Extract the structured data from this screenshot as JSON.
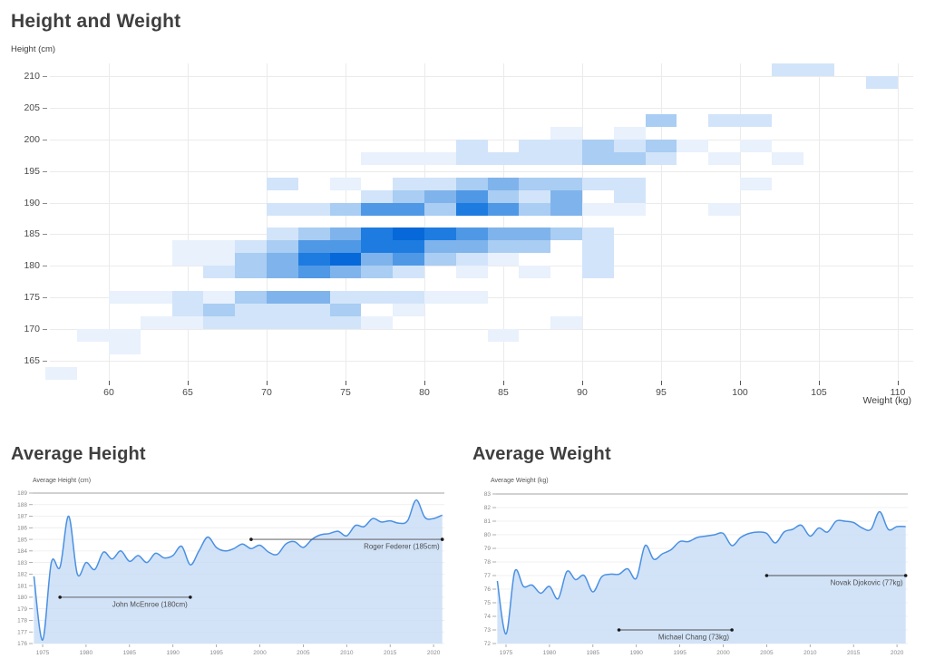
{
  "heatmap_section": {
    "title": "Height and Weight",
    "y_axis_label": "Height (cm)",
    "x_axis_label": "Weight (kg)"
  },
  "height_section": {
    "title": "Average Height",
    "y_axis_label": "Average Height (cm)"
  },
  "weight_section": {
    "title": "Average Weight",
    "y_axis_label": "Average Weight (kg)"
  },
  "chart_data": [
    {
      "type": "heatmap",
      "title": "Height and Weight",
      "xlabel": "Weight (kg)",
      "ylabel": "Height (cm)",
      "x_ticks": [
        60,
        65,
        70,
        75,
        80,
        85,
        90,
        95,
        100,
        105,
        110
      ],
      "y_ticks": [
        165,
        170,
        175,
        180,
        185,
        190,
        195,
        200,
        205,
        210
      ],
      "xlim": [
        56,
        112
      ],
      "ylim": [
        162,
        212
      ],
      "bin_width_kg": 2,
      "bin_height_cm": 2,
      "grid": true,
      "palette": {
        "1": "#e8f1fc",
        "2": "#d2e4f9",
        "3": "#a9cdf3",
        "4": "#7fb3eb",
        "5": "#4f98e6",
        "6": "#1e7ce1",
        "7": "#0668d9"
      },
      "cells": [
        [
          102,
          210,
          2
        ],
        [
          104,
          210,
          2
        ],
        [
          108,
          208,
          2
        ],
        [
          94,
          202,
          3
        ],
        [
          98,
          202,
          2
        ],
        [
          100,
          202,
          2
        ],
        [
          88,
          200,
          1
        ],
        [
          92,
          200,
          1
        ],
        [
          82,
          198,
          2
        ],
        [
          86,
          198,
          2
        ],
        [
          88,
          198,
          2
        ],
        [
          90,
          198,
          3
        ],
        [
          92,
          198,
          2
        ],
        [
          94,
          198,
          3
        ],
        [
          96,
          198,
          1
        ],
        [
          100,
          198,
          1
        ],
        [
          76,
          196,
          1
        ],
        [
          78,
          196,
          1
        ],
        [
          80,
          196,
          1
        ],
        [
          82,
          196,
          2
        ],
        [
          84,
          196,
          2
        ],
        [
          86,
          196,
          2
        ],
        [
          88,
          196,
          2
        ],
        [
          90,
          196,
          3
        ],
        [
          92,
          196,
          3
        ],
        [
          94,
          196,
          2
        ],
        [
          98,
          196,
          1
        ],
        [
          102,
          196,
          1
        ],
        [
          70,
          192,
          2
        ],
        [
          74,
          192,
          1
        ],
        [
          78,
          192,
          2
        ],
        [
          80,
          192,
          2
        ],
        [
          82,
          192,
          3
        ],
        [
          84,
          192,
          4
        ],
        [
          86,
          192,
          3
        ],
        [
          88,
          192,
          3
        ],
        [
          90,
          192,
          2
        ],
        [
          92,
          192,
          2
        ],
        [
          100,
          192,
          1
        ],
        [
          76,
          190,
          2
        ],
        [
          78,
          190,
          3
        ],
        [
          80,
          190,
          4
        ],
        [
          82,
          190,
          5
        ],
        [
          84,
          190,
          3
        ],
        [
          86,
          190,
          2
        ],
        [
          88,
          190,
          4
        ],
        [
          92,
          190,
          2
        ],
        [
          70,
          188,
          2
        ],
        [
          72,
          188,
          2
        ],
        [
          74,
          188,
          3
        ],
        [
          76,
          188,
          5
        ],
        [
          78,
          188,
          5
        ],
        [
          80,
          188,
          3
        ],
        [
          82,
          188,
          6
        ],
        [
          84,
          188,
          5
        ],
        [
          86,
          188,
          3
        ],
        [
          88,
          188,
          4
        ],
        [
          90,
          188,
          1
        ],
        [
          92,
          188,
          1
        ],
        [
          98,
          188,
          1
        ],
        [
          70,
          184,
          2
        ],
        [
          72,
          184,
          3
        ],
        [
          74,
          184,
          4
        ],
        [
          76,
          184,
          6
        ],
        [
          78,
          184,
          7
        ],
        [
          80,
          184,
          6
        ],
        [
          82,
          184,
          5
        ],
        [
          84,
          184,
          4
        ],
        [
          86,
          184,
          4
        ],
        [
          88,
          184,
          3
        ],
        [
          90,
          184,
          2
        ],
        [
          64,
          182,
          1
        ],
        [
          66,
          182,
          1
        ],
        [
          68,
          182,
          2
        ],
        [
          70,
          182,
          3
        ],
        [
          72,
          182,
          5
        ],
        [
          74,
          182,
          5
        ],
        [
          76,
          182,
          6
        ],
        [
          78,
          182,
          6
        ],
        [
          80,
          182,
          4
        ],
        [
          82,
          182,
          4
        ],
        [
          84,
          182,
          3
        ],
        [
          86,
          182,
          3
        ],
        [
          90,
          182,
          2
        ],
        [
          64,
          180,
          1
        ],
        [
          66,
          180,
          1
        ],
        [
          68,
          180,
          3
        ],
        [
          70,
          180,
          4
        ],
        [
          72,
          180,
          6
        ],
        [
          74,
          180,
          7
        ],
        [
          76,
          180,
          4
        ],
        [
          78,
          180,
          5
        ],
        [
          80,
          180,
          3
        ],
        [
          82,
          180,
          2
        ],
        [
          84,
          180,
          1
        ],
        [
          90,
          180,
          2
        ],
        [
          66,
          178,
          2
        ],
        [
          68,
          178,
          3
        ],
        [
          70,
          178,
          4
        ],
        [
          72,
          178,
          5
        ],
        [
          74,
          178,
          4
        ],
        [
          76,
          178,
          3
        ],
        [
          78,
          178,
          2
        ],
        [
          82,
          178,
          1
        ],
        [
          86,
          178,
          1
        ],
        [
          90,
          178,
          2
        ],
        [
          60,
          174,
          1
        ],
        [
          62,
          174,
          1
        ],
        [
          64,
          174,
          2
        ],
        [
          66,
          174,
          1
        ],
        [
          68,
          174,
          3
        ],
        [
          70,
          174,
          4
        ],
        [
          72,
          174,
          4
        ],
        [
          74,
          174,
          2
        ],
        [
          76,
          174,
          2
        ],
        [
          78,
          174,
          2
        ],
        [
          80,
          174,
          1
        ],
        [
          82,
          174,
          1
        ],
        [
          64,
          172,
          2
        ],
        [
          66,
          172,
          3
        ],
        [
          68,
          172,
          2
        ],
        [
          70,
          172,
          2
        ],
        [
          72,
          172,
          2
        ],
        [
          74,
          172,
          3
        ],
        [
          78,
          172,
          1
        ],
        [
          62,
          170,
          1
        ],
        [
          64,
          170,
          1
        ],
        [
          66,
          170,
          2
        ],
        [
          68,
          170,
          2
        ],
        [
          70,
          170,
          2
        ],
        [
          72,
          170,
          2
        ],
        [
          74,
          170,
          2
        ],
        [
          76,
          170,
          1
        ],
        [
          88,
          170,
          1
        ],
        [
          58,
          168,
          1
        ],
        [
          60,
          168,
          1
        ],
        [
          84,
          168,
          1
        ],
        [
          60,
          166,
          1
        ],
        [
          56,
          162,
          1
        ]
      ]
    },
    {
      "type": "area",
      "title": "Average Height",
      "ylabel": "Average Height (cm)",
      "ylim": [
        176,
        189
      ],
      "y_tick_step": 1,
      "x_ticks": [
        1975,
        1980,
        1985,
        1990,
        1995,
        2000,
        2005,
        2010,
        2015,
        2020
      ],
      "grid": true,
      "line_color": "#4a90e2",
      "fill_color": "#c7dcf6",
      "years": [
        1974,
        1975,
        1976,
        1977,
        1978,
        1979,
        1980,
        1981,
        1982,
        1983,
        1984,
        1985,
        1986,
        1987,
        1988,
        1989,
        1990,
        1991,
        1992,
        1993,
        1994,
        1995,
        1996,
        1997,
        1998,
        1999,
        2000,
        2001,
        2002,
        2003,
        2004,
        2005,
        2006,
        2007,
        2008,
        2009,
        2010,
        2011,
        2012,
        2013,
        2014,
        2015,
        2016,
        2017,
        2018,
        2019,
        2020,
        2021
      ],
      "values": [
        181.8,
        176.3,
        183.0,
        182.6,
        187.0,
        182.0,
        183.0,
        182.4,
        183.9,
        183.3,
        184.0,
        183.1,
        183.6,
        183.0,
        183.8,
        183.4,
        183.6,
        184.4,
        182.8,
        184.0,
        185.2,
        184.3,
        184.0,
        184.2,
        184.6,
        184.2,
        184.5,
        183.9,
        183.7,
        184.6,
        184.8,
        184.3,
        185.0,
        185.4,
        185.5,
        185.7,
        185.3,
        186.2,
        186.1,
        186.8,
        186.5,
        186.6,
        186.4,
        186.6,
        188.4,
        186.9,
        186.8,
        187.1
      ],
      "annotations": [
        {
          "label": "John McEnroe (180cm)",
          "y": 180,
          "x_from": 1977,
          "x_to": 1992
        },
        {
          "label": "Roger Federer (185cm)",
          "y": 185,
          "x_from": 1999,
          "x_to": 2021
        }
      ]
    },
    {
      "type": "area",
      "title": "Average Weight",
      "ylabel": "Average Weight (kg)",
      "ylim": [
        72,
        83
      ],
      "y_tick_step": 1,
      "x_ticks": [
        1975,
        1980,
        1985,
        1990,
        1995,
        2000,
        2005,
        2010,
        2015,
        2020
      ],
      "grid": true,
      "line_color": "#4a90e2",
      "fill_color": "#c7dcf6",
      "years": [
        1974,
        1975,
        1976,
        1977,
        1978,
        1979,
        1980,
        1981,
        1982,
        1983,
        1984,
        1985,
        1986,
        1987,
        1988,
        1989,
        1990,
        1991,
        1992,
        1993,
        1994,
        1995,
        1996,
        1997,
        1998,
        1999,
        2000,
        2001,
        2002,
        2003,
        2004,
        2005,
        2006,
        2007,
        2008,
        2009,
        2010,
        2011,
        2012,
        2013,
        2014,
        2015,
        2016,
        2017,
        2018,
        2019,
        2020,
        2021
      ],
      "values": [
        76.6,
        72.7,
        77.3,
        76.2,
        76.3,
        75.7,
        76.2,
        75.3,
        77.3,
        76.7,
        77.0,
        75.8,
        76.9,
        77.1,
        77.1,
        77.5,
        76.8,
        79.2,
        78.2,
        78.6,
        78.9,
        79.5,
        79.5,
        79.8,
        79.9,
        80.0,
        80.1,
        79.2,
        79.8,
        80.1,
        80.2,
        80.1,
        79.4,
        80.2,
        80.4,
        80.7,
        79.9,
        80.5,
        80.2,
        81.0,
        81.0,
        80.9,
        80.5,
        80.4,
        81.7,
        80.4,
        80.6,
        80.6
      ],
      "annotations": [
        {
          "label": "Michael Chang (73kg)",
          "y": 73,
          "x_from": 1988,
          "x_to": 2001
        },
        {
          "label": "Novak Djokovic (77kg)",
          "y": 77,
          "x_from": 2005,
          "x_to": 2021
        }
      ]
    }
  ]
}
